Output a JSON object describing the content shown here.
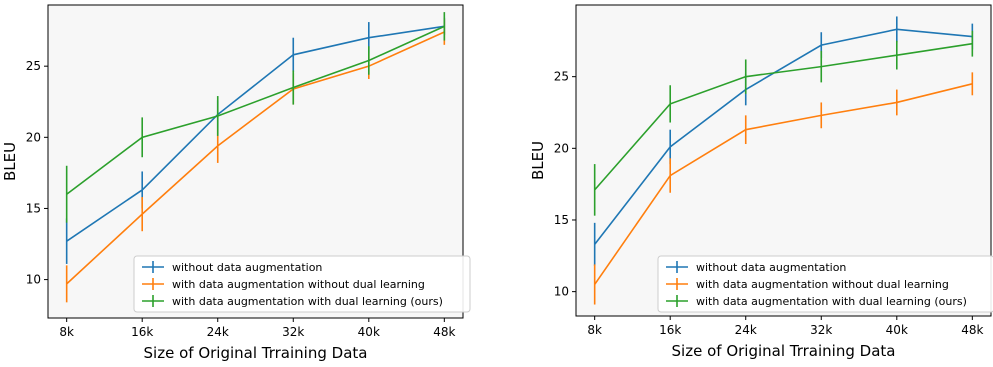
{
  "chart_data": [
    {
      "type": "line",
      "xlabel": "Size of Original Trraining Data",
      "ylabel": "BLEU",
      "categories": [
        "8k",
        "16k",
        "24k",
        "32k",
        "40k",
        "48k"
      ],
      "yticks": [
        10,
        15,
        20,
        25
      ],
      "ylim": [
        7.3,
        29.3
      ],
      "grid": false,
      "legend_position": "lower-right",
      "series": [
        {
          "name": "without data augmentation",
          "color": "#1f77b4",
          "values": [
            12.7,
            16.3,
            21.6,
            25.8,
            27.0,
            27.8
          ],
          "errors": [
            1.6,
            1.3,
            1.0,
            1.2,
            1.1,
            0.6
          ]
        },
        {
          "name": "with data augmentation without dual learning",
          "color": "#ff7f0e",
          "values": [
            9.7,
            14.6,
            19.4,
            23.4,
            25.0,
            27.4
          ],
          "errors": [
            1.3,
            1.2,
            1.2,
            1.1,
            0.9,
            0.9
          ]
        },
        {
          "name": "with data augmentation with dual learning (ours)",
          "color": "#2ca02c",
          "values": [
            16.0,
            20.0,
            21.5,
            23.5,
            25.4,
            27.8
          ],
          "errors": [
            2.0,
            1.4,
            1.4,
            1.2,
            1.0,
            1.0
          ]
        }
      ]
    },
    {
      "type": "line",
      "xlabel": "Size of Original Trraining Data",
      "ylabel": "BLEU",
      "categories": [
        "8k",
        "16k",
        "24k",
        "32k",
        "40k",
        "48k"
      ],
      "yticks": [
        10,
        15,
        20,
        25
      ],
      "ylim": [
        8.3,
        30.0
      ],
      "grid": false,
      "legend_position": "lower-right",
      "series": [
        {
          "name": "without data augmentation",
          "color": "#1f77b4",
          "values": [
            13.3,
            20.1,
            24.1,
            27.2,
            28.3,
            27.8
          ],
          "errors": [
            1.5,
            1.2,
            1.1,
            0.9,
            0.9,
            0.9
          ]
        },
        {
          "name": "with data augmentation without dual learning",
          "color": "#ff7f0e",
          "values": [
            10.5,
            18.1,
            21.3,
            22.3,
            23.2,
            24.5
          ],
          "errors": [
            1.4,
            1.2,
            1.0,
            0.9,
            0.9,
            0.8
          ]
        },
        {
          "name": "with data augmentation with dual learning (ours)",
          "color": "#2ca02c",
          "values": [
            17.1,
            23.1,
            25.0,
            25.7,
            26.5,
            27.3
          ],
          "errors": [
            1.8,
            1.3,
            1.2,
            1.1,
            1.0,
            0.9
          ]
        }
      ]
    }
  ]
}
